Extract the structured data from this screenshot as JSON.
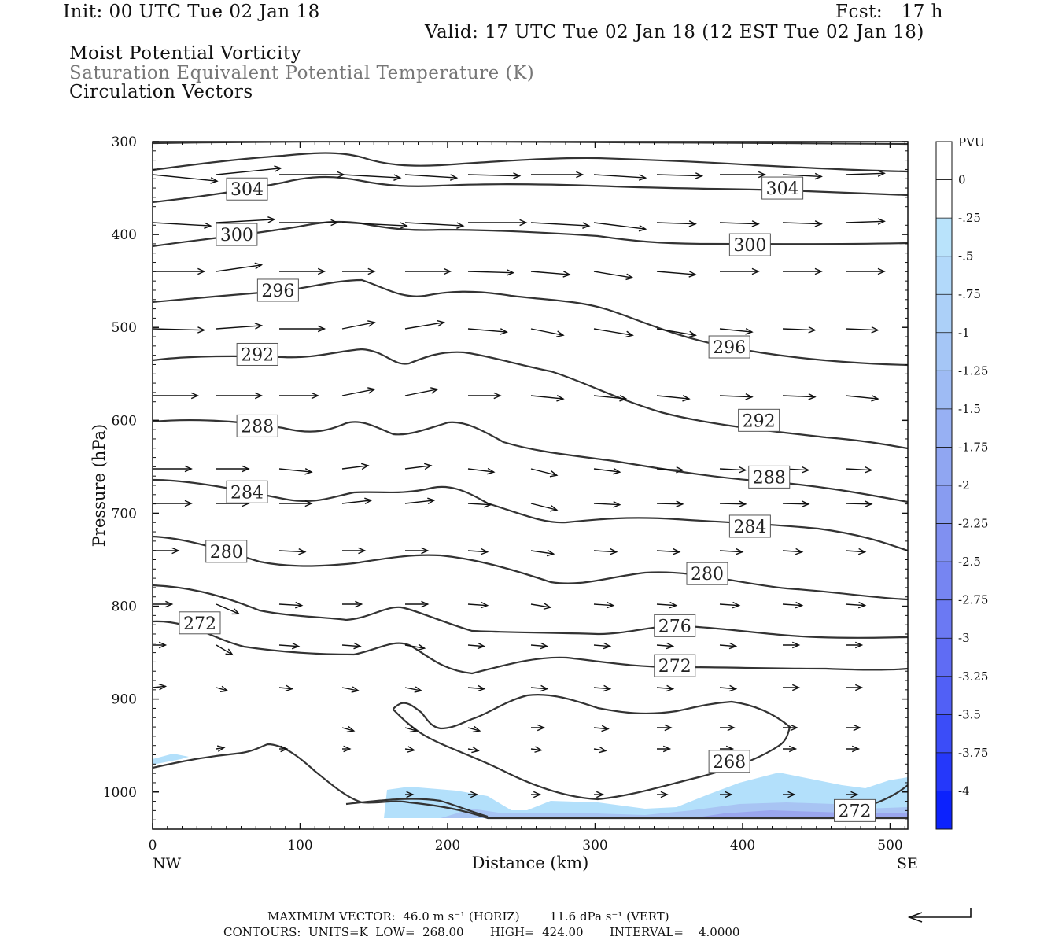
{
  "header": {
    "init": "Init: 00 UTC Tue 02 Jan 18",
    "fcst": "Fcst:   17 h",
    "valid": "Valid: 17 UTC Tue 02 Jan 18 (12 EST Tue 02 Jan 18)"
  },
  "layers": {
    "line1": "Moist Potential Vorticity",
    "line2": "Saturation Equivalent Potential Temperature (K)",
    "line3": "Circulation Vectors"
  },
  "footer": {
    "max_vector": "MAXIMUM VECTOR:  46.0 m s⁻¹ (HORIZ)        11.6 dPa s⁻¹ (VERT)",
    "contours": "CONTOURS:  UNITS=K  LOW=  268.00       HIGH=  424.00       INTERVAL=    4.0000"
  },
  "colors": {
    "contour": "#333333",
    "shade_light": "#b3e0fb",
    "shade_mid": "#a8c4f3",
    "shade_dark": "#9aa6ee"
  },
  "chart_data": {
    "type": "contour-cross-section",
    "xlabel": "Distance (km)",
    "ylabel": "Pressure (hPa)",
    "xlim": [
      0,
      512
    ],
    "ylim": [
      1040,
      300
    ],
    "x_ticks": [
      0,
      100,
      200,
      300,
      400,
      500
    ],
    "y_ticks": [
      300,
      400,
      500,
      600,
      700,
      800,
      900,
      1000
    ],
    "x_end_labels": {
      "left": "NW",
      "right": "SE"
    },
    "contour_labels": [
      {
        "text": "304",
        "x": 64,
        "p": 351
      },
      {
        "text": "304",
        "x": 427,
        "p": 350
      },
      {
        "text": "300",
        "x": 57,
        "p": 400
      },
      {
        "text": "300",
        "x": 405,
        "p": 411
      },
      {
        "text": "296",
        "x": 85,
        "p": 460
      },
      {
        "text": "296",
        "x": 391,
        "p": 521
      },
      {
        "text": "292",
        "x": 71,
        "p": 529
      },
      {
        "text": "292",
        "x": 411,
        "p": 600
      },
      {
        "text": "288",
        "x": 71,
        "p": 606
      },
      {
        "text": "288",
        "x": 418,
        "p": 661
      },
      {
        "text": "284",
        "x": 64,
        "p": 677
      },
      {
        "text": "284",
        "x": 405,
        "p": 714
      },
      {
        "text": "280",
        "x": 50,
        "p": 741
      },
      {
        "text": "280",
        "x": 376,
        "p": 765
      },
      {
        "text": "276",
        "x": 354,
        "p": 821
      },
      {
        "text": "272",
        "x": 32,
        "p": 818
      },
      {
        "text": "272",
        "x": 354,
        "p": 864
      },
      {
        "text": "268",
        "x": 391,
        "p": 967
      },
      {
        "text": "272",
        "x": 476,
        "p": 1020
      }
    ],
    "legend": {
      "title": "PVU",
      "levels": [
        "0",
        "-.25",
        "-.5",
        "-.75",
        "-1",
        "-1.25",
        "-1.5",
        "-1.75",
        "-2",
        "-2.25",
        "-2.5",
        "-2.75",
        "-3",
        "-3.25",
        "-3.5",
        "-3.75",
        "-4"
      ],
      "colors": [
        "#ffffff",
        "#ffffff",
        "#b9e3fb",
        "#b2d9fa",
        "#acd0f8",
        "#a5c6f6",
        "#9ebbf4",
        "#97b0f3",
        "#90a6f2",
        "#889cf1",
        "#8090f1",
        "#7685f2",
        "#6b79f3",
        "#5f6cf4",
        "#5160f6",
        "#3b4df8",
        "#2538fa",
        "#0c22fd"
      ]
    }
  }
}
